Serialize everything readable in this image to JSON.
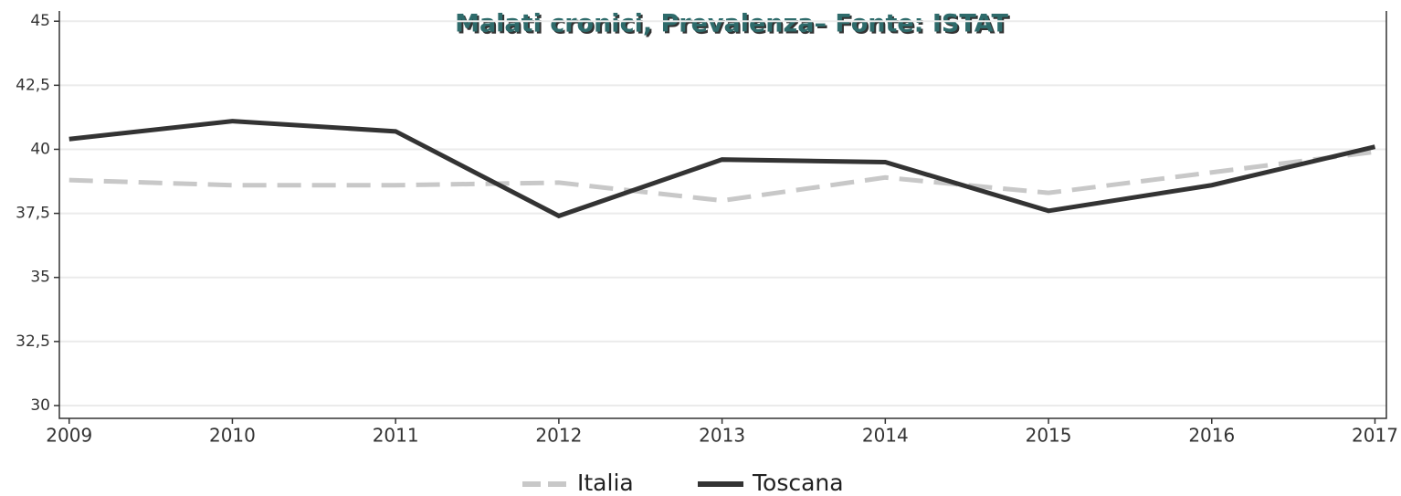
{
  "chart_data": {
    "type": "line",
    "title": "Malati cronici, Prevalenza– Fonte: ISTAT",
    "x": [
      2009,
      2010,
      2011,
      2012,
      2013,
      2014,
      2015,
      2016,
      2017
    ],
    "xlim": [
      2008.94,
      2017.07
    ],
    "xticks": [
      2009,
      2010,
      2011,
      2012,
      2013,
      2014,
      2015,
      2016,
      2017
    ],
    "ylim": [
      29.5,
      45.4
    ],
    "yticks": [
      30,
      {
        "value": 32.5,
        "label": "32,5"
      },
      35,
      {
        "value": 37.5,
        "label": "37,5"
      },
      40,
      {
        "value": 42.5,
        "label": "42,5"
      },
      45
    ],
    "grid": true,
    "legend": "bottom",
    "series": [
      {
        "name": "Italia",
        "color": "#c8c8c8",
        "dashed": true,
        "values": [
          38.8,
          38.6,
          38.6,
          38.7,
          38.0,
          38.9,
          38.3,
          39.1,
          39.9
        ]
      },
      {
        "name": "Toscana",
        "color": "#333333",
        "dashed": false,
        "values": [
          40.4,
          41.1,
          40.7,
          37.4,
          39.6,
          39.5,
          37.6,
          38.6,
          40.1
        ]
      }
    ]
  }
}
